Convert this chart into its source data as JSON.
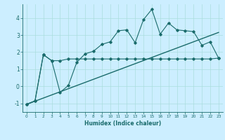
{
  "title": "",
  "xlabel": "Humidex (Indice chaleur)",
  "bg_color": "#cceeff",
  "grid_color": "#aadddd",
  "line_color": "#1a6b6b",
  "xlim": [
    -0.5,
    23.5
  ],
  "ylim": [
    -1.5,
    4.8
  ],
  "yticks": [
    -1,
    0,
    1,
    2,
    3,
    4
  ],
  "xticks": [
    0,
    1,
    2,
    3,
    4,
    5,
    6,
    7,
    8,
    9,
    10,
    11,
    12,
    13,
    14,
    15,
    16,
    17,
    18,
    19,
    20,
    21,
    22,
    23
  ],
  "series1_x": [
    0,
    1,
    2,
    3,
    4,
    5,
    6,
    7,
    8,
    9,
    10,
    11,
    12,
    13,
    14,
    15,
    16,
    17,
    18,
    19,
    20,
    21,
    22,
    23
  ],
  "series1_y": [
    -1.05,
    -0.85,
    1.85,
    1.5,
    -0.35,
    0.05,
    1.4,
    1.9,
    2.05,
    2.45,
    2.6,
    3.25,
    3.3,
    2.55,
    3.9,
    4.5,
    3.05,
    3.7,
    3.3,
    3.25,
    3.2,
    2.4,
    2.6,
    1.65
  ],
  "series2_x": [
    0,
    1,
    2,
    3,
    4,
    5,
    6,
    7,
    8,
    9,
    10,
    11,
    12,
    13,
    14,
    15,
    16,
    17,
    18,
    19,
    20,
    21,
    22,
    23
  ],
  "series2_y": [
    -1.05,
    -0.85,
    1.85,
    1.5,
    1.5,
    1.6,
    1.6,
    1.6,
    1.6,
    1.6,
    1.6,
    1.6,
    1.6,
    1.6,
    1.6,
    1.6,
    1.6,
    1.6,
    1.6,
    1.6,
    1.6,
    1.6,
    1.6,
    1.65
  ],
  "trend_x": [
    0,
    23
  ],
  "trend_y": [
    -1.05,
    3.15
  ]
}
